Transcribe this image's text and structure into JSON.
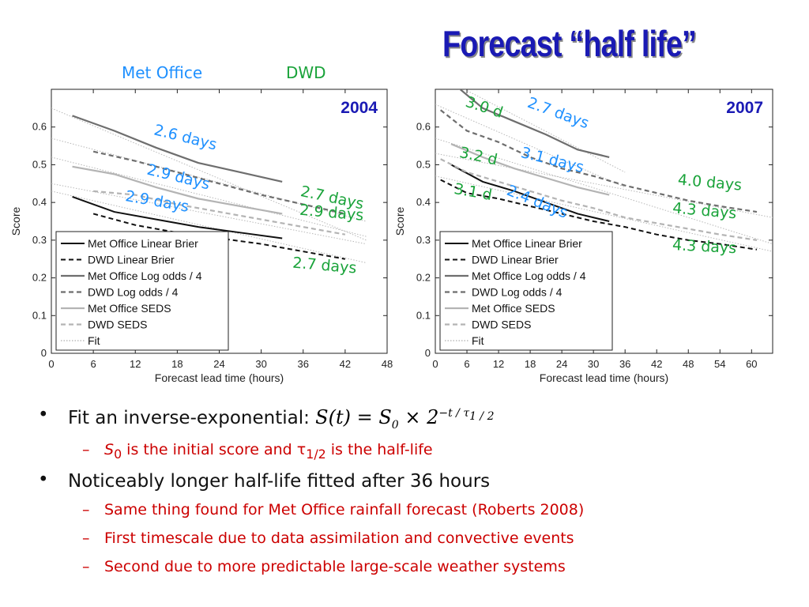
{
  "title": "Forecast “half life”",
  "sources": {
    "met_office": "Met Office",
    "dwd": "DWD"
  },
  "colors": {
    "met_office": "#1e90ff",
    "dwd": "#1aa33a",
    "title": "#1a1ab4",
    "subbullet": "#cc0000"
  },
  "legend_items": [
    "Met Office Linear Brier",
    "DWD Linear Brier",
    "Met Office Log odds / 4",
    "DWD Log odds / 4",
    "Met Office SEDS",
    "DWD SEDS",
    "Fit"
  ],
  "chart_data": [
    {
      "type": "line",
      "title": "2004",
      "xlabel": "Forecast lead time (hours)",
      "ylabel": "Score",
      "xlim": [
        0,
        48
      ],
      "ylim": [
        0,
        0.7
      ],
      "xticks": [
        0,
        6,
        12,
        18,
        24,
        30,
        36,
        42,
        48
      ],
      "yticks": [
        0,
        0.1,
        0.2,
        0.3,
        0.4,
        0.5,
        0.6
      ],
      "grid": false,
      "legend_position": "bottom-left",
      "series": [
        {
          "name": "Met Office Linear Brier",
          "x": [
            3,
            9,
            15,
            21,
            27,
            33
          ],
          "y": [
            0.415,
            0.375,
            0.355,
            0.335,
            0.32,
            0.305
          ]
        },
        {
          "name": "DWD Linear Brier",
          "x": [
            6,
            12,
            18,
            24,
            30,
            36,
            42
          ],
          "y": [
            0.37,
            0.34,
            0.32,
            0.305,
            0.29,
            0.27,
            0.25
          ]
        },
        {
          "name": "Met Office Log odds / 4",
          "x": [
            3,
            9,
            15,
            21,
            27,
            33
          ],
          "y": [
            0.63,
            0.59,
            0.545,
            0.505,
            0.48,
            0.455
          ]
        },
        {
          "name": "DWD Log odds / 4",
          "x": [
            6,
            12,
            18,
            24,
            30,
            36,
            42
          ],
          "y": [
            0.535,
            0.51,
            0.48,
            0.45,
            0.42,
            0.395,
            0.37
          ]
        },
        {
          "name": "Met Office SEDS",
          "x": [
            3,
            9,
            15,
            21,
            27,
            33
          ],
          "y": [
            0.495,
            0.475,
            0.44,
            0.41,
            0.39,
            0.37
          ]
        },
        {
          "name": "DWD SEDS",
          "x": [
            6,
            12,
            18,
            24,
            30,
            36,
            42
          ],
          "y": [
            0.43,
            0.42,
            0.395,
            0.375,
            0.355,
            0.335,
            0.315
          ]
        }
      ],
      "fits": [
        {
          "x": [
            0,
            45
          ],
          "y": [
            0.65,
            0.3
          ]
        },
        {
          "x": [
            0,
            45
          ],
          "y": [
            0.57,
            0.35
          ]
        },
        {
          "x": [
            0,
            45
          ],
          "y": [
            0.52,
            0.31
          ]
        },
        {
          "x": [
            0,
            45
          ],
          "y": [
            0.45,
            0.29
          ]
        },
        {
          "x": [
            0,
            45
          ],
          "y": [
            0.43,
            0.24
          ]
        }
      ],
      "annotations": [
        {
          "text": "2.6 days",
          "source": "met_office",
          "x": 19,
          "y": 0.56,
          "rotate": 14
        },
        {
          "text": "2.9 days",
          "source": "met_office",
          "x": 18,
          "y": 0.455,
          "rotate": 14
        },
        {
          "text": "2.9 days",
          "source": "met_office",
          "x": 15,
          "y": 0.39,
          "rotate": 10
        },
        {
          "text": "2.7 days",
          "source": "dwd",
          "x": 40,
          "y": 0.4,
          "rotate": 12
        },
        {
          "text": "2.9 days",
          "source": "dwd",
          "x": 40,
          "y": 0.36,
          "rotate": 5
        },
        {
          "text": "2.7 days",
          "source": "dwd",
          "x": 39,
          "y": 0.22,
          "rotate": 5
        }
      ]
    },
    {
      "type": "line",
      "title": "2007",
      "xlabel": "Forecast lead time (hours)",
      "ylabel": "Score",
      "xlim": [
        0,
        64
      ],
      "ylim": [
        0,
        0.7
      ],
      "xticks": [
        0,
        6,
        12,
        18,
        24,
        30,
        36,
        42,
        48,
        54,
        60
      ],
      "yticks": [
        0,
        0.1,
        0.2,
        0.3,
        0.4,
        0.5,
        0.6
      ],
      "grid": false,
      "legend_position": "bottom-left",
      "series": [
        {
          "name": "Met Office Linear Brier",
          "x": [
            3,
            9,
            15,
            21,
            27,
            33
          ],
          "y": [
            0.5,
            0.455,
            0.43,
            0.4,
            0.37,
            0.35
          ]
        },
        {
          "name": "DWD Linear Brier",
          "x": [
            1,
            6,
            12,
            18,
            24,
            30,
            36,
            42,
            48,
            54,
            61
          ],
          "y": [
            0.46,
            0.425,
            0.41,
            0.39,
            0.37,
            0.35,
            0.335,
            0.315,
            0.3,
            0.29,
            0.275
          ]
        },
        {
          "name": "Met Office Log odds / 4",
          "x": [
            3,
            9,
            15,
            21,
            27,
            33
          ],
          "y": [
            0.72,
            0.65,
            0.615,
            0.58,
            0.54,
            0.52
          ]
        },
        {
          "name": "DWD Log odds / 4",
          "x": [
            1,
            6,
            12,
            18,
            24,
            30,
            36,
            42,
            48,
            54,
            61
          ],
          "y": [
            0.645,
            0.59,
            0.56,
            0.52,
            0.49,
            0.47,
            0.445,
            0.425,
            0.405,
            0.39,
            0.375
          ]
        },
        {
          "name": "Met Office SEDS",
          "x": [
            3,
            9,
            15,
            21,
            27,
            33
          ],
          "y": [
            0.555,
            0.52,
            0.49,
            0.465,
            0.44,
            0.42
          ]
        },
        {
          "name": "DWD SEDS",
          "x": [
            1,
            6,
            12,
            18,
            24,
            30,
            36,
            42,
            48,
            54,
            61
          ],
          "y": [
            0.515,
            0.48,
            0.455,
            0.43,
            0.405,
            0.385,
            0.36,
            0.345,
            0.33,
            0.315,
            0.3
          ]
        }
      ],
      "fits": [
        {
          "x": [
            0,
            36
          ],
          "y": [
            0.74,
            0.48
          ]
        },
        {
          "x": [
            0,
            36
          ],
          "y": [
            0.66,
            0.44
          ]
        },
        {
          "x": [
            0,
            64
          ],
          "y": [
            0.57,
            0.29
          ]
        },
        {
          "x": [
            0,
            64
          ],
          "y": [
            0.53,
            0.36
          ]
        },
        {
          "x": [
            0,
            64
          ],
          "y": [
            0.47,
            0.27
          ]
        }
      ],
      "annotations": [
        {
          "text": "3.0 d",
          "source": "dwd",
          "x": 9,
          "y": 0.64,
          "rotate": 18
        },
        {
          "text": "2.7 days",
          "source": "met_office",
          "x": 23,
          "y": 0.625,
          "rotate": 20
        },
        {
          "text": "3.2 d",
          "source": "dwd",
          "x": 8,
          "y": 0.51,
          "rotate": 12
        },
        {
          "text": "3.1 days",
          "source": "met_office",
          "x": 22,
          "y": 0.5,
          "rotate": 14
        },
        {
          "text": "3.1 d",
          "source": "dwd",
          "x": 7,
          "y": 0.415,
          "rotate": 10
        },
        {
          "text": "2.4 days",
          "source": "met_office",
          "x": 19,
          "y": 0.39,
          "rotate": 22
        },
        {
          "text": "4.0 days",
          "source": "dwd",
          "x": 52,
          "y": 0.44,
          "rotate": 5
        },
        {
          "text": "4.3 days",
          "source": "dwd",
          "x": 51,
          "y": 0.365,
          "rotate": 5
        },
        {
          "text": "4.3 days",
          "source": "dwd",
          "x": 51,
          "y": 0.27,
          "rotate": 3
        }
      ]
    }
  ],
  "bullets": {
    "item1_text": "Fit an inverse-exponential:",
    "formula": {
      "lhs": "S(t) = S",
      "s0_sub": "0",
      "times": " × 2",
      "exp": "−t / τ",
      "exp_sub": "1 / 2"
    },
    "sub1": {
      "s": "S",
      "s_sub": "0",
      "mid": " is the initial score and ",
      "tau": "τ",
      "tau_sub": "1/2",
      "end": " is the half-life"
    },
    "item2_text": "Noticeably longer half-life fitted after 36 hours",
    "sub2": "Same thing found for Met Office rainfall forecast (Roberts 2008)",
    "sub3": "First timescale due to data assimilation and convective events",
    "sub4": "Second due to more predictable large-scale weather systems",
    "bullet_glyph": "•",
    "dash_glyph": "–"
  }
}
